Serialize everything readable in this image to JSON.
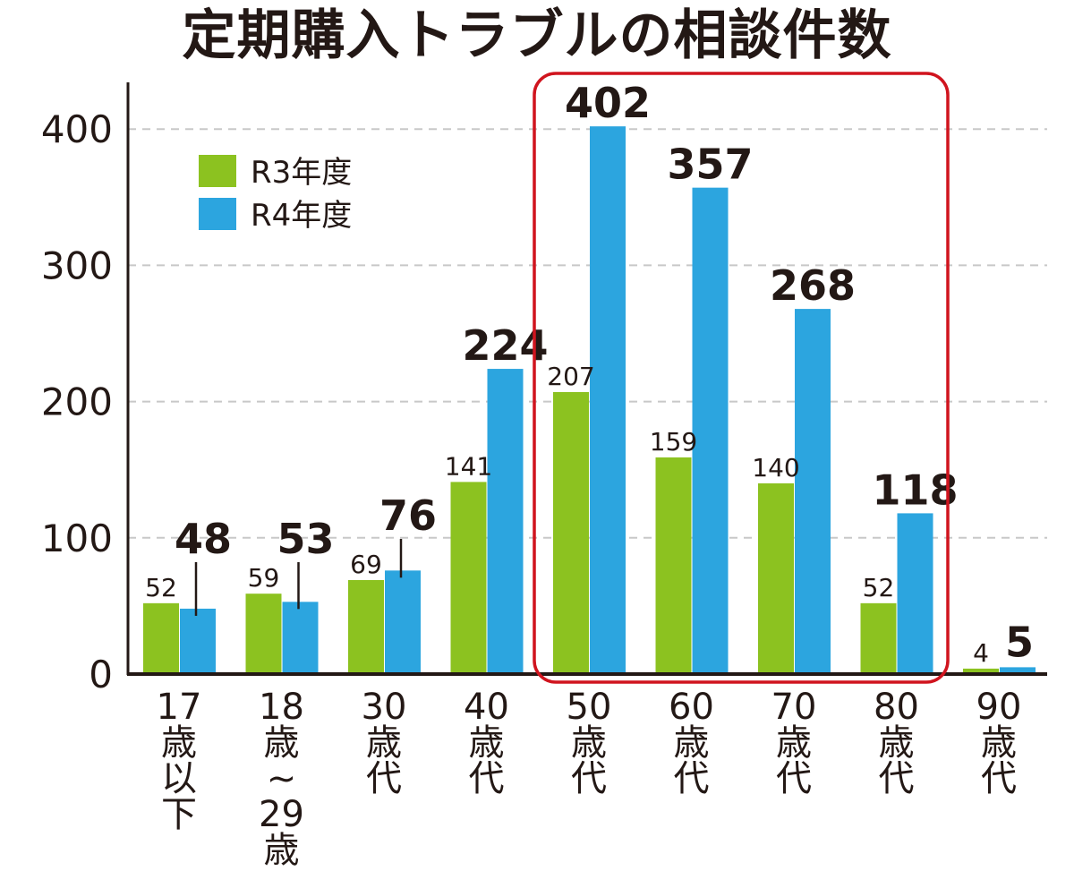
{
  "chart_data": {
    "type": "bar",
    "title": "定期購入トラブルの相談件数",
    "xlabel": "",
    "ylabel": "",
    "ylim": [
      0,
      430
    ],
    "yticks": [
      "0",
      "100",
      "200",
      "300",
      "400"
    ],
    "grid": true,
    "legend_position": "top-left",
    "categories": [
      "17歳以下",
      "18歳~29歳",
      "30歳代",
      "40歳代",
      "50歳代",
      "60歳代",
      "70歳代",
      "80歳代",
      "90歳代"
    ],
    "category_lines": [
      [
        "17",
        "歳",
        "以",
        "下"
      ],
      [
        "18",
        "歳",
        "~",
        "29",
        "歳"
      ],
      [
        "30",
        "歳",
        "代"
      ],
      [
        "40",
        "歳",
        "代"
      ],
      [
        "50",
        "歳",
        "代"
      ],
      [
        "60",
        "歳",
        "代"
      ],
      [
        "70",
        "歳",
        "代"
      ],
      [
        "80",
        "歳",
        "代"
      ],
      [
        "90",
        "歳",
        "代"
      ]
    ],
    "series": [
      {
        "name": "R3年度",
        "color": "#8cc220",
        "values": [
          52,
          59,
          69,
          141,
          207,
          159,
          140,
          52,
          4
        ]
      },
      {
        "name": "R4年度",
        "color": "#2ca5df",
        "values": [
          48,
          53,
          76,
          224,
          402,
          357,
          268,
          118,
          5
        ]
      }
    ],
    "highlight": {
      "categories": [
        "50歳代",
        "60歳代",
        "70歳代",
        "80歳代"
      ],
      "color": "#d0141e"
    }
  }
}
